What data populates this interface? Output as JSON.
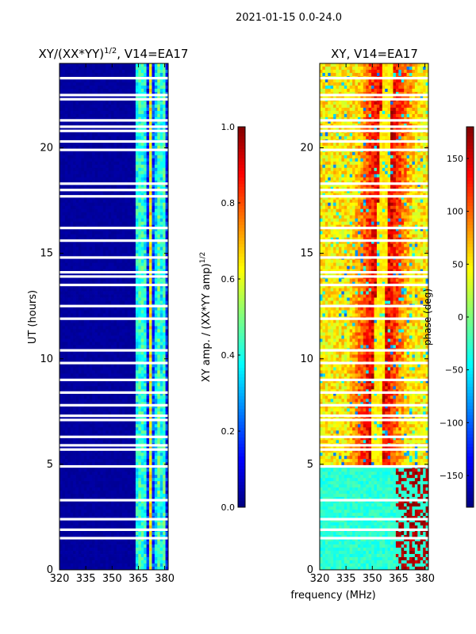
{
  "suptitle": "2021-01-15 0.0-24.0",
  "colors": {
    "bg": "#ffffff",
    "axis": "#000000",
    "gap": "#ffffff",
    "jet": [
      "#00007f",
      "#0000ff",
      "#007fff",
      "#00ffff",
      "#7fff7f",
      "#ffff00",
      "#ff7f00",
      "#ff0000",
      "#7f0000"
    ]
  },
  "chart_data": [
    {
      "type": "heatmap",
      "title_prefix": "XY/(XX*YY)",
      "title_sup": "1/2",
      "title_suffix": ", V14=EA17",
      "xlabel": "",
      "ylabel": "UT (hours)",
      "xlim": [
        320,
        382
      ],
      "ylim": [
        0,
        24
      ],
      "xticks": [
        "320",
        "335",
        "350",
        "365",
        "380"
      ],
      "xtick_values": [
        320,
        335,
        350,
        365,
        380
      ],
      "yticks": [
        "0",
        "5",
        "10",
        "15",
        "20"
      ],
      "ytick_values": [
        0,
        5,
        10,
        15,
        20
      ],
      "colorbar": {
        "label_prefix": "XY amp. / (XX*YY amp)",
        "label_sup": "1/2",
        "range": [
          0.0,
          1.0
        ],
        "ticks": [
          "0.0",
          "0.2",
          "0.4",
          "0.6",
          "0.8",
          "1.0"
        ],
        "tick_values": [
          0.0,
          0.2,
          0.4,
          0.6,
          0.8,
          1.0
        ]
      },
      "structure": {
        "low_band_mhz": [
          320,
          363
        ],
        "low_band_value": 0.02,
        "high_band_mhz": [
          363,
          382
        ],
        "high_band_range": [
          0.15,
          0.65
        ],
        "bright_channels_mhz": [
          365,
          368,
          372,
          376,
          379
        ]
      }
    },
    {
      "type": "heatmap",
      "title_prefix": "XY, V14=EA17",
      "xlabel": "frequency (MHz)",
      "ylabel": "",
      "xlim": [
        320,
        382
      ],
      "ylim": [
        0,
        24
      ],
      "xticks": [
        "320",
        "335",
        "350",
        "365",
        "380"
      ],
      "xtick_values": [
        320,
        335,
        350,
        365,
        380
      ],
      "yticks": [
        "0",
        "5",
        "10",
        "15",
        "20"
      ],
      "ytick_values": [
        0,
        5,
        10,
        15,
        20
      ],
      "colorbar": {
        "label": "phase (deg)",
        "range": [
          -180,
          180
        ],
        "ticks": [
          "−150",
          "−100",
          "−50",
          "0",
          "50",
          "100",
          "150"
        ],
        "tick_values": [
          -150,
          -100,
          -50,
          0,
          50,
          100,
          150
        ]
      },
      "structure": {
        "early_hours": [
          0,
          5
        ],
        "early_phase_deg": -30,
        "late_phase_range_deg": [
          0,
          170
        ]
      }
    }
  ],
  "data_gaps_ut_hours": [
    1.5,
    1.9,
    2.4,
    3.3,
    4.9,
    5.7,
    5.9,
    6.3,
    7.1,
    7.3,
    7.8,
    8.4,
    9.0,
    9.8,
    10.4,
    11.9,
    12.5,
    13.5,
    13.9,
    14.1,
    14.8,
    15.6,
    16.2,
    17.7,
    18.0,
    18.3,
    19.9,
    20.3,
    20.8,
    21.0,
    21.3,
    22.3,
    22.5,
    23.3
  ]
}
